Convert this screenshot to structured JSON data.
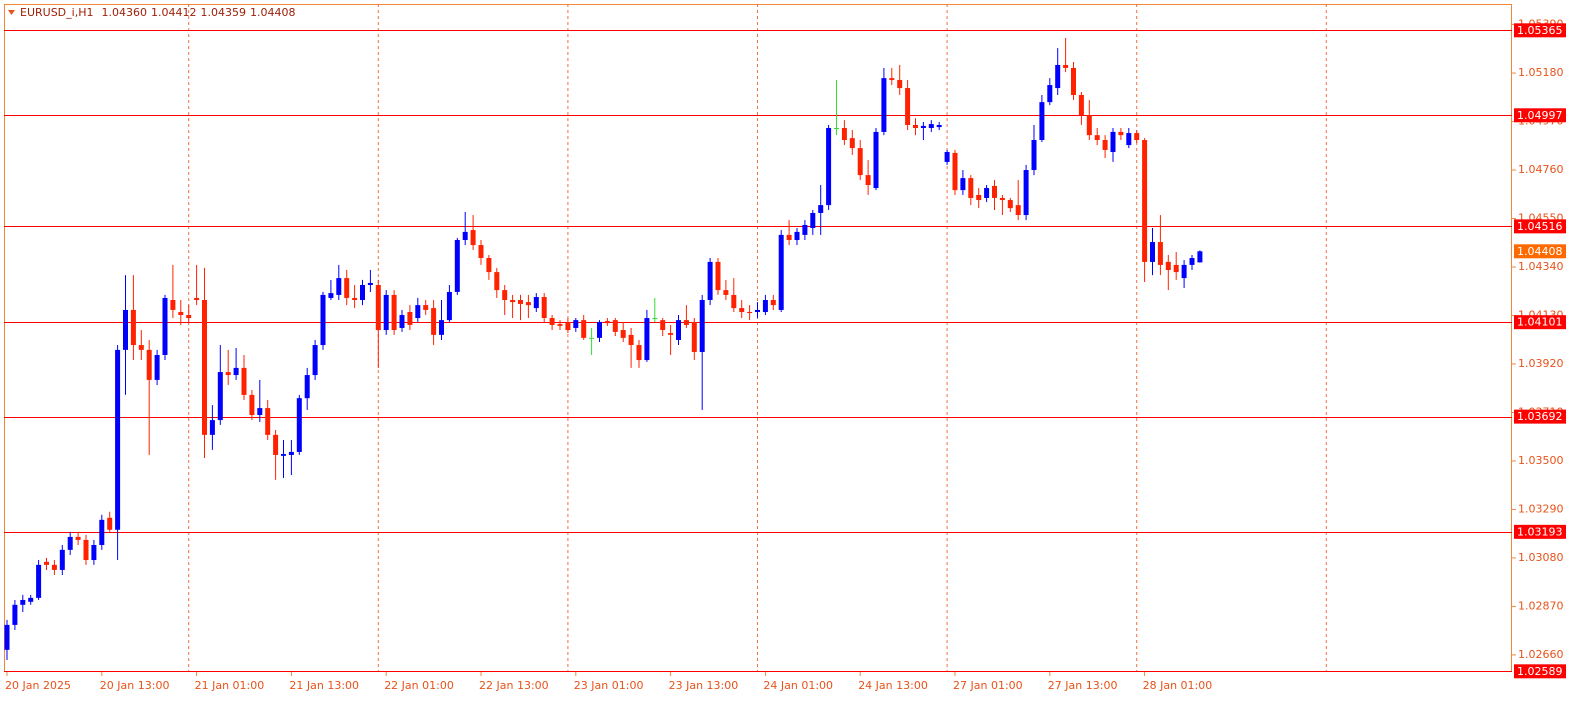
{
  "header": {
    "symbol": "EURUSD_i,H1",
    "ohlc": [
      "1.04360",
      "1.04412",
      "1.04359",
      "1.04408"
    ]
  },
  "chart_data": {
    "type": "candlestick",
    "categories": [
      "20 Jan 2025",
      null,
      null,
      null,
      null,
      null,
      null,
      null,
      null,
      null,
      null,
      null,
      "20 Jan 13:00",
      null,
      null,
      null,
      null,
      null,
      null,
      null,
      null,
      null,
      null,
      null,
      "21 Jan 01:00",
      null,
      null,
      null,
      null,
      null,
      null,
      null,
      null,
      null,
      null,
      null,
      "21 Jan 13:00",
      null,
      null,
      null,
      null,
      null,
      null,
      null,
      null,
      null,
      null,
      null,
      "22 Jan 01:00",
      null,
      null,
      null,
      null,
      null,
      null,
      null,
      null,
      null,
      null,
      null,
      "22 Jan 13:00",
      null,
      null,
      null,
      null,
      null,
      null,
      null,
      null,
      null,
      null,
      null,
      "23 Jan 01:00",
      null,
      null,
      null,
      null,
      null,
      null,
      null,
      null,
      null,
      null,
      null,
      "23 Jan 13:00",
      null,
      null,
      null,
      null,
      null,
      null,
      null,
      null,
      null,
      null,
      null,
      "24 Jan 01:00",
      null,
      null,
      null,
      null,
      null,
      null,
      null,
      null,
      null,
      null,
      null,
      "24 Jan 13:00",
      null,
      null,
      null,
      null,
      null,
      null,
      null,
      null,
      null,
      null,
      null,
      "27 Jan 01:00",
      null,
      null,
      null,
      null,
      null,
      null,
      null,
      null,
      null,
      null,
      null,
      "27 Jan 13:00",
      null,
      null,
      null,
      null,
      null,
      null,
      null,
      null,
      null,
      null,
      null,
      "28 Jan 01:00",
      null,
      null,
      null,
      null,
      null,
      null,
      null
    ],
    "open": [
      1.02682,
      1.0279,
      1.02877,
      1.0289,
      1.02907,
      1.03063,
      1.0305,
      1.03028,
      1.03115,
      1.03171,
      1.03158,
      1.03071,
      1.03136,
      1.03254,
      1.03202,
      1.03981,
      1.04154,
      1.04002,
      1.03981,
      1.03851,
      1.03959,
      1.04197,
      1.04145,
      1.04132,
      1.04206,
      1.04197,
      1.03613,
      1.03677,
      1.03885,
      1.03872,
      1.03903,
      1.03786,
      1.03699,
      1.03729,
      1.03613,
      1.03522,
      1.03526,
      1.03539,
      1.03772,
      1.03872,
      1.04002,
      1.04206,
      1.04219,
      1.04292,
      1.04206,
      1.04197,
      1.04262,
      1.04262,
      1.04067,
      1.04219,
      1.04076,
      1.04145,
      1.04119,
      1.04175,
      1.04162,
      1.04046,
      1.0411,
      1.04232,
      1.04457,
      1.045,
      1.04435,
      1.04379,
      1.04318,
      1.0424,
      1.04197,
      1.04197,
      1.04188,
      1.04162,
      1.0421,
      1.04119,
      1.04093,
      1.04102,
      1.04076,
      1.0411,
      1.04033,
      1.04033,
      1.04106,
      1.0411,
      1.04067,
      1.04046,
      1.04002,
      1.03937,
      1.04119,
      1.0411,
      1.04054,
      1.04024,
      1.0411,
      1.04102,
      1.03972,
      1.04197,
      1.04362,
      1.0424,
      1.04219,
      1.04162,
      1.04145,
      1.04145,
      1.04145,
      1.04197,
      1.04154,
      1.04479,
      1.04457,
      1.04479,
      1.04509,
      1.04574,
      1.04608,
      1.04942,
      1.04942,
      1.04898,
      1.04855,
      1.04738,
      1.04682,
      1.04925,
      1.05158,
      1.0515,
      1.05115,
      1.04955,
      1.04942,
      1.04942,
      1.04946,
      1.04795,
      1.04834,
      1.04673,
      1.04725,
      1.04652,
      1.04639,
      1.04691,
      1.04639,
      1.0463,
      1.04608,
      1.04565,
      1.0476,
      1.0489,
      1.05054,
      1.05115,
      1.05215,
      1.05202,
      1.05085,
      1.04998,
      1.04911,
      1.0489,
      1.04838,
      1.04925,
      1.04868,
      1.0492,
      1.0489,
      1.04362,
      1.04448,
      1.04362,
      1.04349,
      1.04292,
      1.04349,
      1.0436
    ],
    "high": [
      1.02812,
      1.02898,
      1.0292,
      1.0292,
      1.03071,
      1.0308,
      1.03071,
      1.03136,
      1.03193,
      1.03193,
      1.0318,
      1.03158,
      1.03267,
      1.0328,
      1.04002,
      1.04305,
      1.04305,
      1.04067,
      1.04024,
      1.03981,
      1.04219,
      1.04349,
      1.04197,
      1.04175,
      1.04349,
      1.04336,
      1.03742,
      1.04002,
      1.03981,
      1.03989,
      1.03959,
      1.03807,
      1.03851,
      1.03764,
      1.03634,
      1.03591,
      1.03591,
      1.03786,
      1.03903,
      1.04024,
      1.04232,
      1.04284,
      1.04349,
      1.04327,
      1.04262,
      1.04284,
      1.04327,
      1.04284,
      1.0424,
      1.0424,
      1.04154,
      1.04175,
      1.04206,
      1.04197,
      1.04197,
      1.04197,
      1.04262,
      1.04466,
      1.04578,
      1.04565,
      1.04457,
      1.04392,
      1.04336,
      1.04262,
      1.04219,
      1.04219,
      1.04219,
      1.04227,
      1.04227,
      1.04132,
      1.0411,
      1.04119,
      1.04119,
      1.04132,
      1.04076,
      1.0411,
      1.04119,
      1.04119,
      1.04102,
      1.04076,
      1.04024,
      1.04154,
      1.04206,
      1.04119,
      1.04089,
      1.04132,
      1.04175,
      1.04119,
      1.04219,
      1.04379,
      1.04379,
      1.04284,
      1.04292,
      1.04197,
      1.04175,
      1.04188,
      1.04219,
      1.04219,
      1.045,
      1.04543,
      1.04509,
      1.04543,
      1.04587,
      1.04695,
      1.04955,
      1.0515,
      1.04976,
      1.04933,
      1.0489,
      1.04803,
      1.04942,
      1.05202,
      1.05202,
      1.05215,
      1.0515,
      1.04985,
      1.04968,
      1.04976,
      1.04968,
      1.04847,
      1.04847,
      1.0476,
      1.04738,
      1.04682,
      1.04695,
      1.04717,
      1.04652,
      1.04639,
      1.04717,
      1.04782,
      1.04955,
      1.05085,
      1.05158,
      1.05288,
      1.05332,
      1.05228,
      1.05098,
      1.05063,
      1.04942,
      1.04911,
      1.04942,
      1.04942,
      1.04942,
      1.04933,
      1.04898,
      1.04509,
      1.04565,
      1.04392,
      1.04405,
      1.0437,
      1.04392,
      1.04412
    ],
    "low": [
      1.02638,
      1.02768,
      1.02846,
      1.02877,
      1.02898,
      1.03028,
      1.03006,
      1.03006,
      1.03093,
      1.03136,
      1.0305,
      1.0305,
      1.03115,
      1.03193,
      1.03071,
      1.03786,
      1.03937,
      1.03937,
      1.03526,
      1.03829,
      1.03937,
      1.04119,
      1.04089,
      1.04102,
      1.04175,
      1.03513,
      1.03548,
      1.03656,
      1.03829,
      1.03851,
      1.03764,
      1.03677,
      1.03669,
      1.03591,
      1.03418,
      1.03426,
      1.03439,
      1.03526,
      1.03721,
      1.03851,
      1.03981,
      1.04197,
      1.04197,
      1.04175,
      1.04162,
      1.04175,
      1.04232,
      1.03903,
      1.04046,
      1.04046,
      1.04059,
      1.04067,
      1.04102,
      1.04132,
      1.04002,
      1.04024,
      1.04102,
      1.04219,
      1.04435,
      1.04414,
      1.04349,
      1.04284,
      1.04206,
      1.04132,
      1.04119,
      1.0411,
      1.04119,
      1.04145,
      1.04102,
      1.04067,
      1.04067,
      1.04054,
      1.04059,
      1.04024,
      1.03959,
      1.04015,
      1.04085,
      1.04041,
      1.04015,
      1.03903,
      1.03903,
      1.03929,
      1.04102,
      1.04041,
      1.03959,
      1.04002,
      1.04076,
      1.03937,
      1.03721,
      1.04175,
      1.04219,
      1.04197,
      1.04145,
      1.04119,
      1.0411,
      1.04119,
      1.04132,
      1.04154,
      1.04145,
      1.04435,
      1.04435,
      1.04457,
      1.04479,
      1.04479,
      1.04587,
      1.04911,
      1.04868,
      1.04825,
      1.04717,
      1.04652,
      1.04673,
      1.04911,
      1.05128,
      1.05085,
      1.04933,
      1.04911,
      1.0489,
      1.04925,
      1.04933,
      1.04782,
      1.04652,
      1.04652,
      1.04608,
      1.04595,
      1.04621,
      1.04587,
      1.04565,
      1.04578,
      1.04543,
      1.04543,
      1.04738,
      1.04881,
      1.05041,
      1.05085,
      1.05184,
      1.05063,
      1.04955,
      1.0489,
      1.04868,
      1.04812,
      1.04795,
      1.0489,
      1.04855,
      1.04877,
      1.04275,
      1.04305,
      1.04305,
      1.0424,
      1.04284,
      1.04249,
      1.04327,
      1.04359
    ],
    "close": [
      1.0279,
      1.02877,
      1.02898,
      1.02907,
      1.0305,
      1.0305,
      1.03028,
      1.03115,
      1.03171,
      1.03158,
      1.03071,
      1.03136,
      1.03245,
      1.03202,
      1.03981,
      1.04154,
      1.04002,
      1.03981,
      1.03851,
      1.03959,
      1.04206,
      1.04154,
      1.04132,
      1.04119,
      1.04197,
      1.03613,
      1.03677,
      1.03885,
      1.03872,
      1.03903,
      1.03786,
      1.03699,
      1.03729,
      1.03613,
      1.03526,
      1.0353,
      1.03539,
      1.03772,
      1.03872,
      1.04002,
      1.04219,
      1.04227,
      1.04292,
      1.04206,
      1.04197,
      1.04262,
      1.04271,
      1.04067,
      1.04219,
      1.04067,
      1.04132,
      1.04089,
      1.04175,
      1.04154,
      1.04046,
      1.0411,
      1.04232,
      1.04457,
      1.04492,
      1.04435,
      1.04379,
      1.04318,
      1.0424,
      1.04197,
      1.04188,
      1.0418,
      1.04175,
      1.0421,
      1.04119,
      1.04089,
      1.04085,
      1.04067,
      1.0411,
      1.04033,
      1.04033,
      1.04102,
      1.04097,
      1.04059,
      1.04033,
      1.04002,
      1.03937,
      1.04119,
      1.04119,
      1.04067,
      1.04046,
      1.0411,
      1.04089,
      1.03972,
      1.04197,
      1.04362,
      1.0424,
      1.04219,
      1.04162,
      1.04145,
      1.04141,
      1.04154,
      1.04197,
      1.04175,
      1.04479,
      1.04457,
      1.04492,
      1.04522,
      1.04574,
      1.04608,
      1.04942,
      1.04942,
      1.0489,
      1.04855,
      1.04738,
      1.04695,
      1.04925,
      1.05158,
      1.0515,
      1.05115,
      1.04955,
      1.04942,
      1.04951,
      1.04959,
      1.04955,
      1.04838,
      1.04673,
      1.04725,
      1.04639,
      1.0463,
      1.04682,
      1.04639,
      1.0463,
      1.04595,
      1.04565,
      1.0476,
      1.0489,
      1.05054,
      1.05128,
      1.05215,
      1.05202,
      1.05085,
      1.04998,
      1.04911,
      1.0489,
      1.04847,
      1.04925,
      1.04911,
      1.0492,
      1.0489,
      1.04362,
      1.04448,
      1.04349,
      1.04327,
      1.04318,
      1.04349,
      1.04379,
      1.04408
    ],
    "up_color": "#0000ff",
    "down_color": "#ff2200",
    "doji_color": "#33dd33",
    "ylim": [
      1.02586,
      1.05479
    ],
    "yticks": [
      {
        "value": 1.0266,
        "label": "1.02660"
      },
      {
        "value": 1.0287,
        "label": "1.02870"
      },
      {
        "value": 1.0308,
        "label": "1.03080"
      },
      {
        "value": 1.0329,
        "label": "1.03290"
      },
      {
        "value": 1.035,
        "label": "1.03500"
      },
      {
        "value": 1.0371,
        "label": "1.03710"
      },
      {
        "value": 1.0392,
        "label": "1.03920"
      },
      {
        "value": 1.0413,
        "label": "1.04130"
      },
      {
        "value": 1.0434,
        "label": "1.04340"
      },
      {
        "value": 1.0455,
        "label": "1.04550"
      },
      {
        "value": 1.0476,
        "label": "1.04760"
      },
      {
        "value": 1.0497,
        "label": "1.04970"
      },
      {
        "value": 1.0518,
        "label": "1.05180"
      },
      {
        "value": 1.0539,
        "label": "1.05390"
      }
    ],
    "levels": [
      1.05365,
      1.04997,
      1.04516,
      1.04101,
      1.03692,
      1.03193,
      1.02589
    ],
    "level_color": "#ff0000",
    "current_price": 1.04408,
    "current_price_color": "#ff6a00",
    "grid": false
  }
}
